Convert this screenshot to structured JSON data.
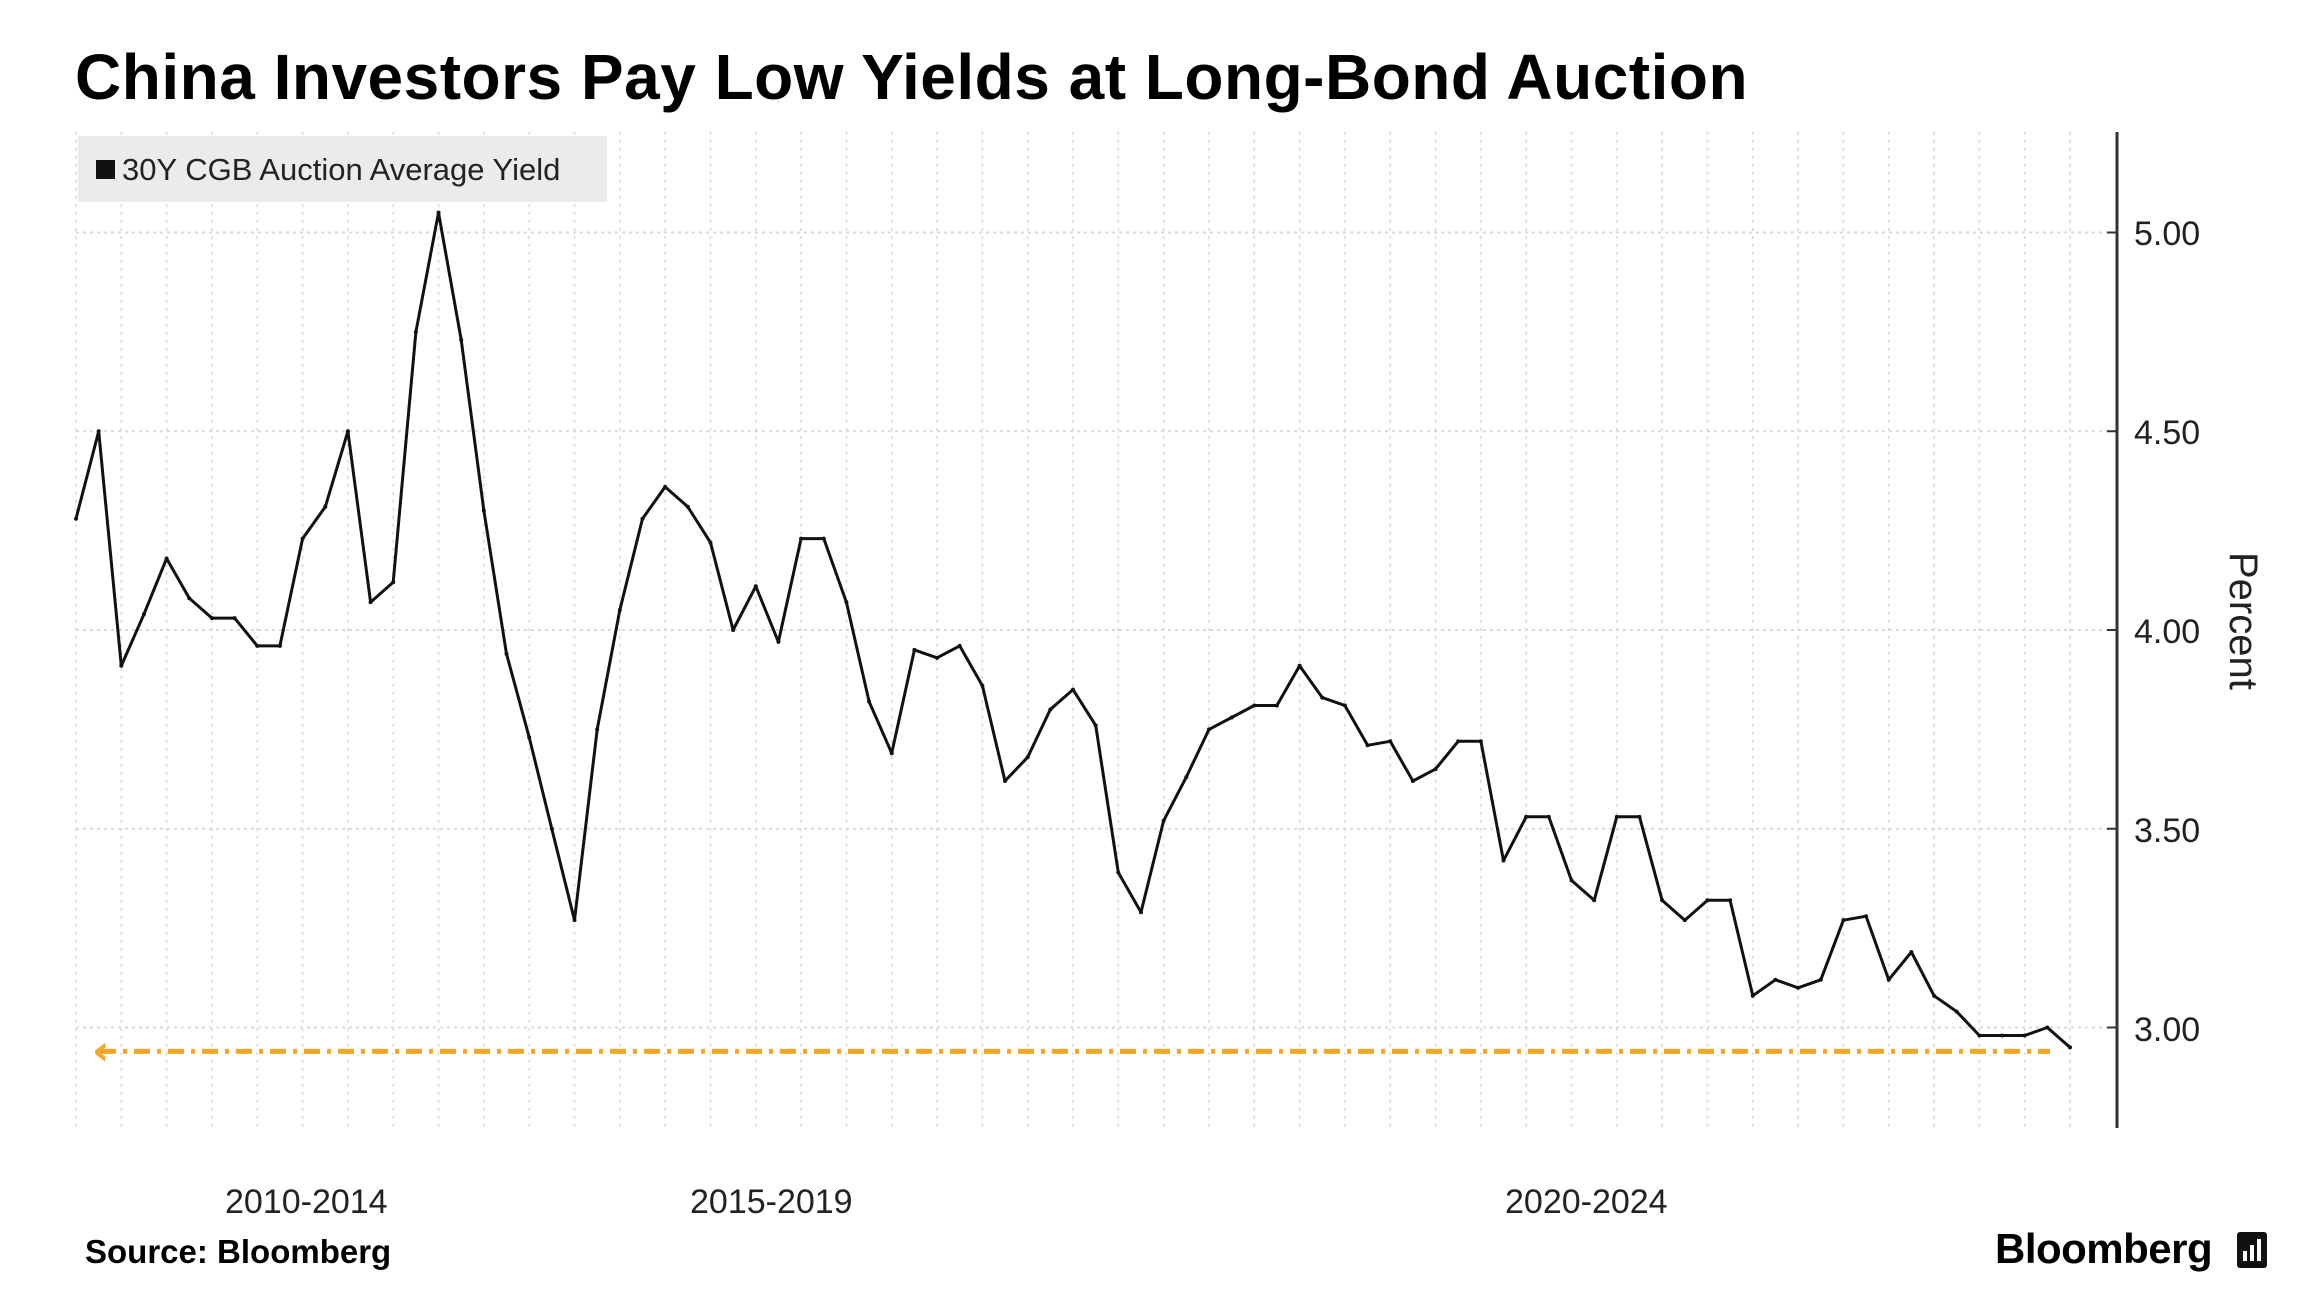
{
  "title": "China Investors Pay Low Yields at Long-Bond Auction",
  "source": "Source: Bloomberg",
  "brand": "Bloomberg",
  "colors": {
    "line": "#111111",
    "reference": "#f5a623",
    "grid": "#d9d9d9"
  },
  "chart_data": {
    "type": "line",
    "title": "China Investors Pay Low Yields at Long-Bond Auction",
    "ylabel": "Percent",
    "ylim": [
      2.75,
      5.25
    ],
    "yticks": [
      "5.00",
      "4.50",
      "4.00",
      "3.50",
      "3.00"
    ],
    "xlabels": [
      "2010-2014",
      "2015-2019",
      "2020-2024"
    ],
    "legend": "30Y CGB Auction Average Yield",
    "legend_position": "top-left",
    "grid": true,
    "reference_line": {
      "value": 2.94,
      "style": "dashed",
      "color": "#f5a623"
    },
    "series": [
      {
        "name": "30Y CGB Auction Average Yield",
        "values": [
          4.28,
          4.5,
          3.91,
          4.04,
          4.18,
          4.08,
          4.03,
          4.03,
          3.96,
          3.96,
          4.23,
          4.31,
          4.5,
          4.07,
          4.12,
          4.75,
          5.05,
          4.73,
          4.3,
          3.94,
          3.73,
          3.5,
          3.27,
          3.75,
          4.05,
          4.28,
          4.36,
          4.31,
          4.22,
          4.0,
          4.11,
          3.97,
          4.23,
          4.23,
          4.07,
          3.82,
          3.69,
          3.95,
          3.93,
          3.96,
          3.86,
          3.62,
          3.68,
          3.8,
          3.85,
          3.76,
          3.39,
          3.29,
          3.52,
          3.63,
          3.75,
          3.78,
          3.81,
          3.81,
          3.91,
          3.83,
          3.81,
          3.71,
          3.72,
          3.62,
          3.65,
          3.72,
          3.72,
          3.42,
          3.53,
          3.53,
          3.37,
          3.32,
          3.53,
          3.53,
          3.32,
          3.27,
          3.32,
          3.32,
          3.08,
          3.12,
          3.1,
          3.12,
          3.27,
          3.28,
          3.12,
          3.19,
          3.08,
          3.04,
          2.98,
          2.98,
          2.98,
          3.0,
          2.95
        ]
      }
    ]
  }
}
